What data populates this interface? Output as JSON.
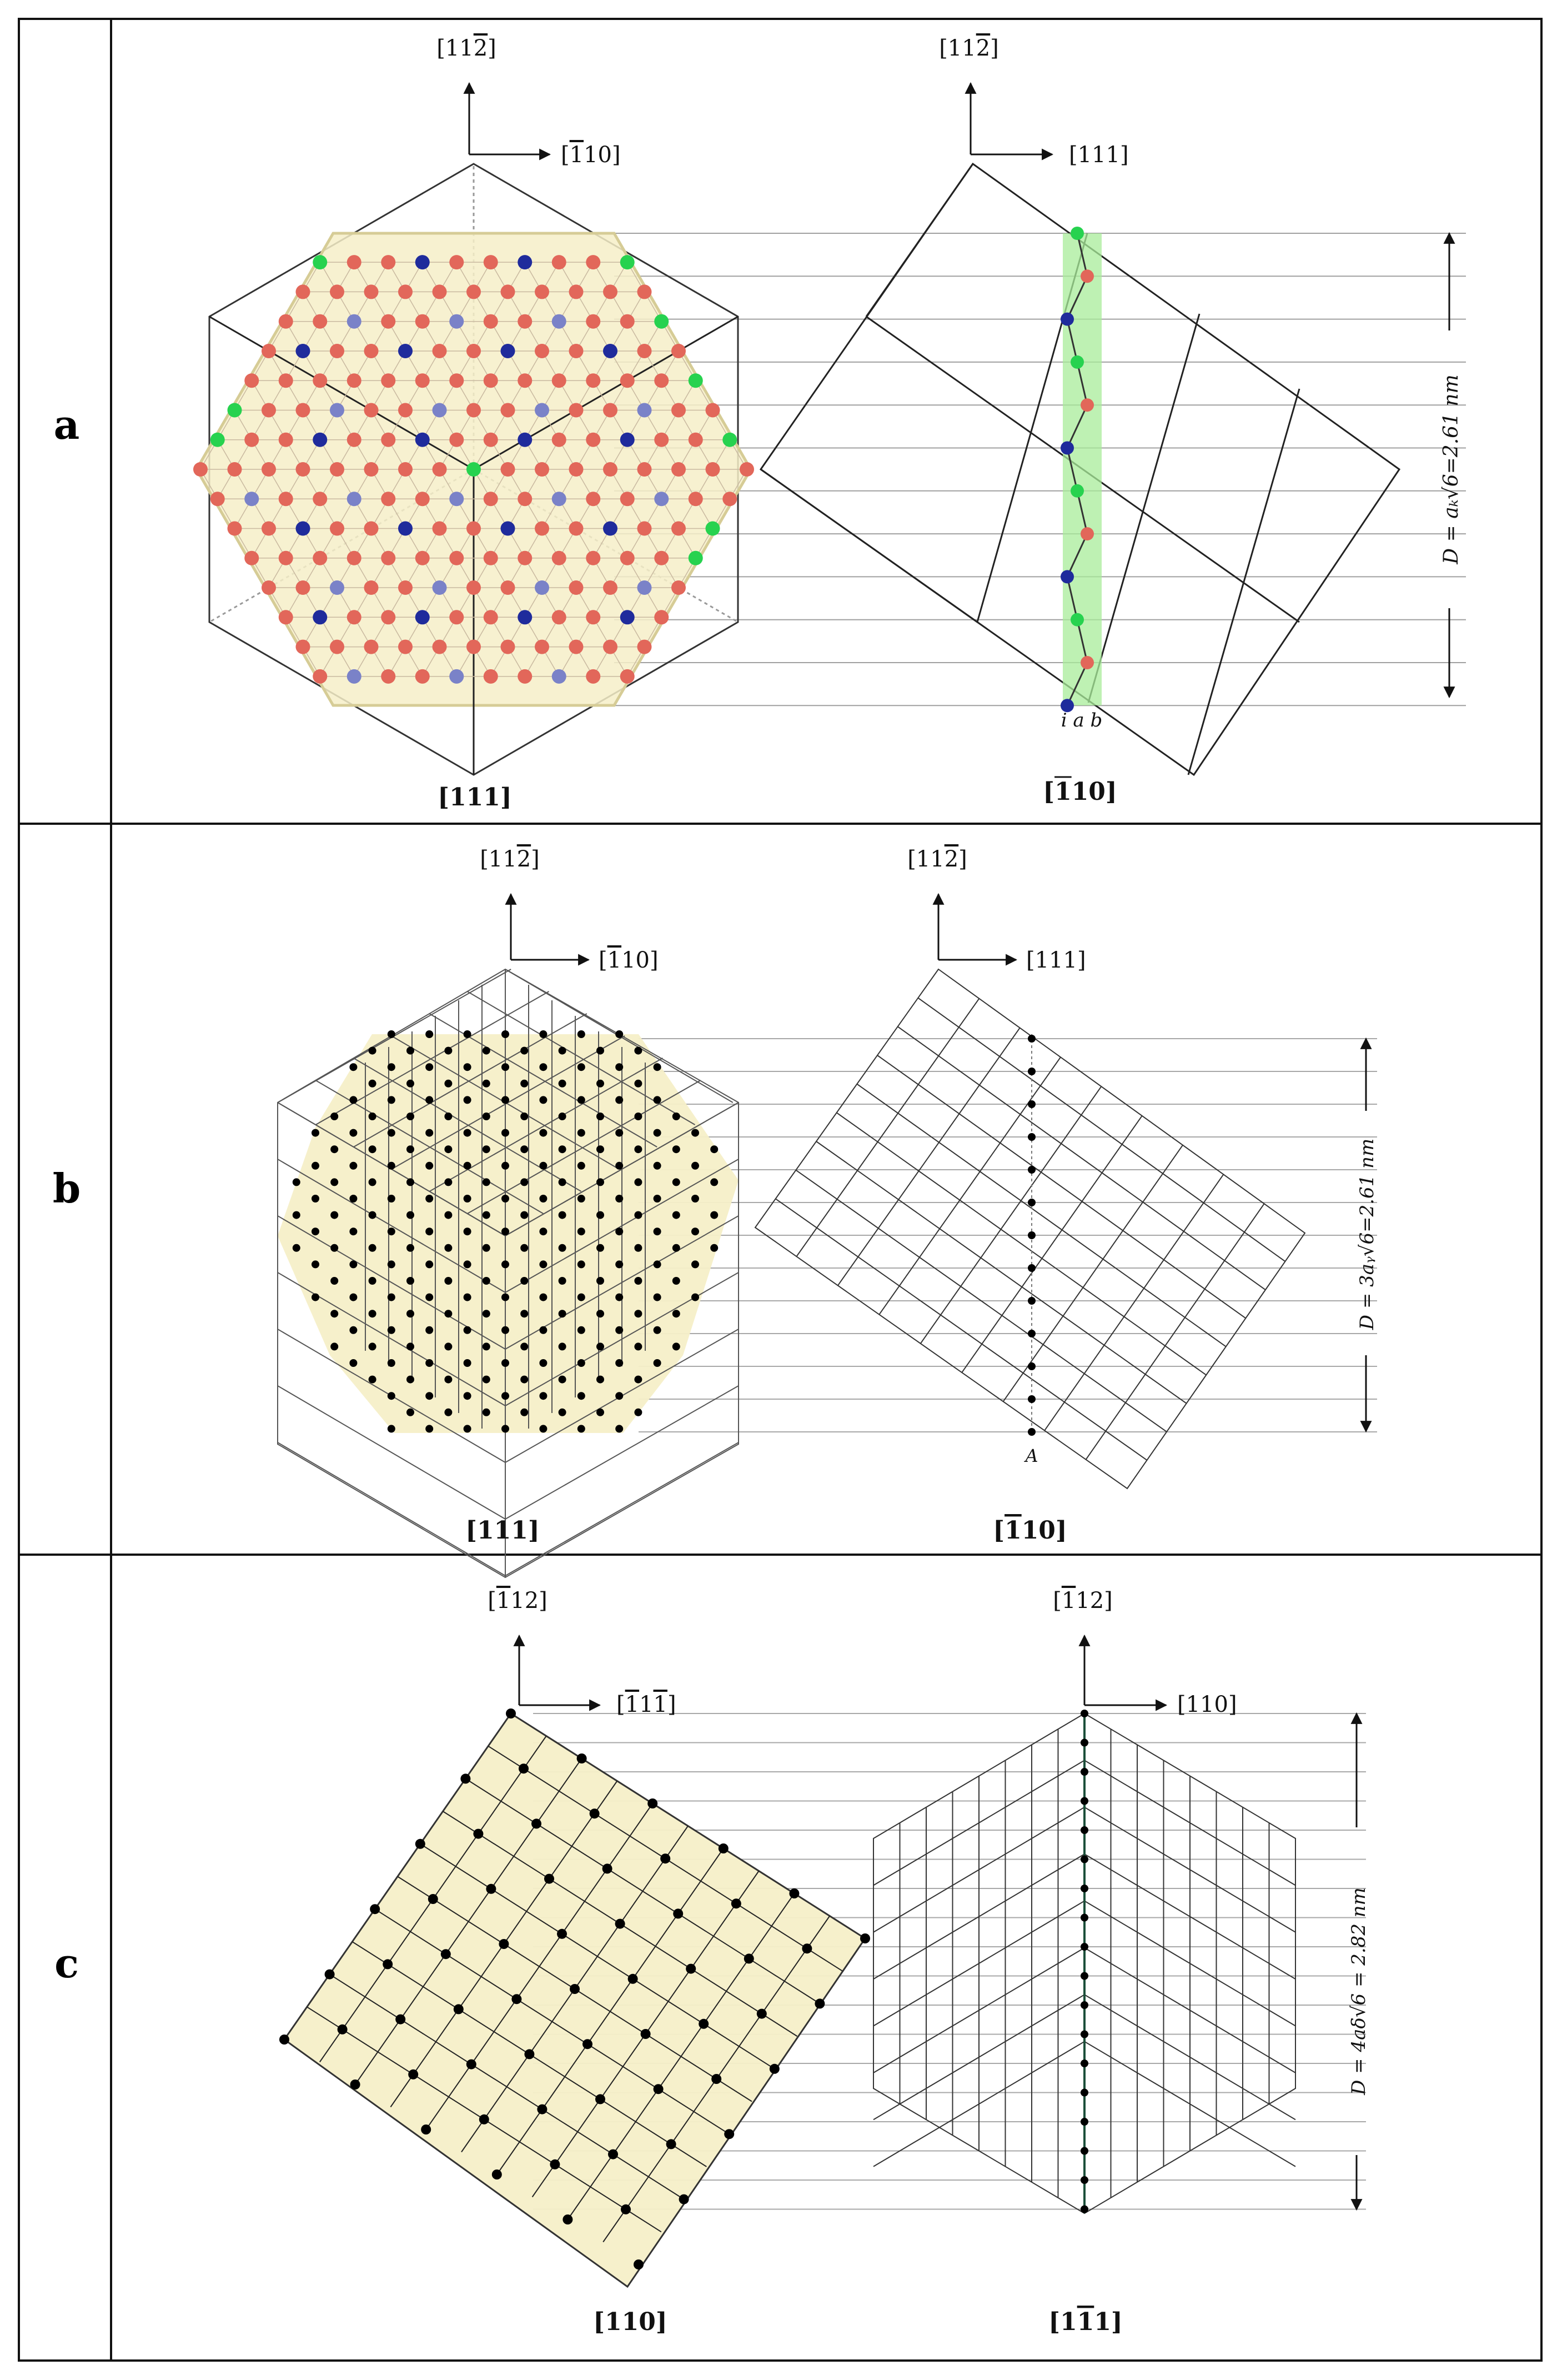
{
  "colors": {
    "fcc_fill": "#f6efc8",
    "red_atom": "#e2675a",
    "blue_atom": "#1f2b9c",
    "blue_light_atom": "#7a82c8",
    "green_atom": "#27d24f",
    "green_strip": "#a8ec9a",
    "black_atom": "#000000",
    "line": "#222222",
    "guide": "#9a9a9a"
  },
  "icons": [
    "arrow-up-icon",
    "arrow-right-icon",
    "dimension-arrow-icon"
  ],
  "panels": [
    {
      "letter": "a",
      "left": {
        "axis_up": "[11̅2]",
        "axis_up_parts": [
          "[11",
          "2",
          "]"
        ],
        "axis_right": "[̅1 10]",
        "axis_right_parts": [
          "[",
          "1",
          "10]"
        ],
        "zone_axis": "[111]"
      },
      "right": {
        "axis_up_parts": [
          "[11",
          "2",
          "]"
        ],
        "axis_right": "[111]",
        "zone_axis_parts": [
          "[",
          "1",
          "10]"
        ],
        "stack_label": "i a b"
      },
      "dimension": "D = aₖ√6=2.61 nm"
    },
    {
      "letter": "b",
      "left": {
        "axis_up_parts": [
          "[11",
          "2",
          "]"
        ],
        "axis_right_parts": [
          "[",
          "1",
          "10]"
        ],
        "zone_axis": "[111]"
      },
      "right": {
        "axis_up_parts": [
          "[11",
          "2",
          "]"
        ],
        "axis_right": "[111]",
        "zone_axis_parts": [
          "[",
          "1",
          "10]"
        ],
        "stack_label": "A"
      },
      "dimension": "D = 3aᵧ√6=2.61 nm"
    },
    {
      "letter": "c",
      "left": {
        "axis_up_parts": [
          "[",
          "1",
          "12]"
        ],
        "axis_right_parts": [
          "[",
          "1",
          "1",
          "1",
          "]"
        ],
        "zone_axis": "[110]"
      },
      "right": {
        "axis_up_parts": [
          "[",
          "1",
          "12]"
        ],
        "axis_right": "[110]",
        "zone_axis_parts": [
          "[1",
          "1",
          "1]"
        ]
      },
      "dimension": "D = 4aδ√6 = 2.82 nm"
    }
  ]
}
